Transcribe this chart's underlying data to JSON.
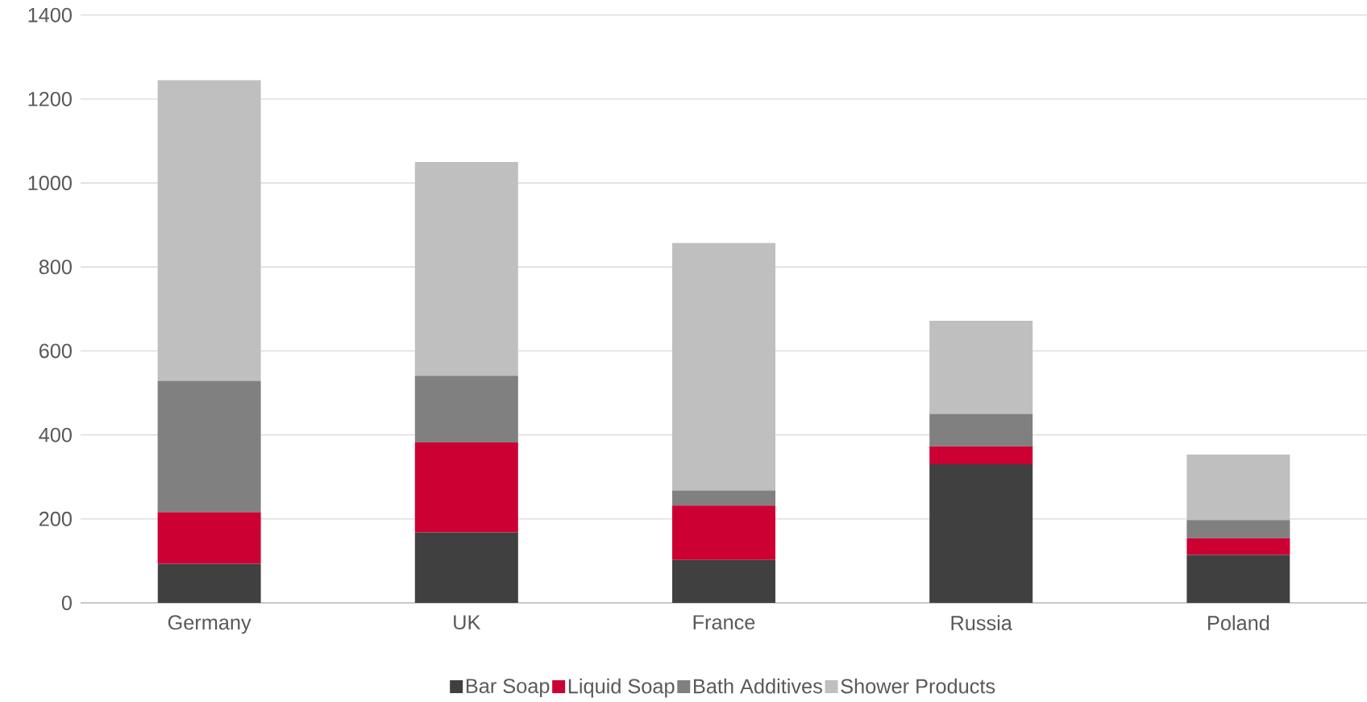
{
  "chart_data": {
    "type": "bar",
    "stacked": true,
    "categories": [
      "Germany",
      "UK",
      "France",
      "Russia",
      "Poland"
    ],
    "series": [
      {
        "name": "Bar Soap",
        "color": "#404040",
        "values": [
          93,
          168,
          102,
          330,
          114
        ]
      },
      {
        "name": "Liquid Soap",
        "color": "#cc0033",
        "values": [
          123,
          214,
          130,
          43,
          40
        ]
      },
      {
        "name": "Bath Additives",
        "color": "#808080",
        "values": [
          313,
          159,
          36,
          77,
          43
        ]
      },
      {
        "name": "Shower Products",
        "color": "#bfbfbf",
        "values": [
          716,
          509,
          589,
          222,
          156
        ]
      }
    ],
    "ylim": [
      0,
      1400
    ],
    "yticks": [
      0,
      200,
      400,
      600,
      800,
      1000,
      1200,
      1400
    ],
    "grid": "y",
    "legend": "bottom"
  }
}
